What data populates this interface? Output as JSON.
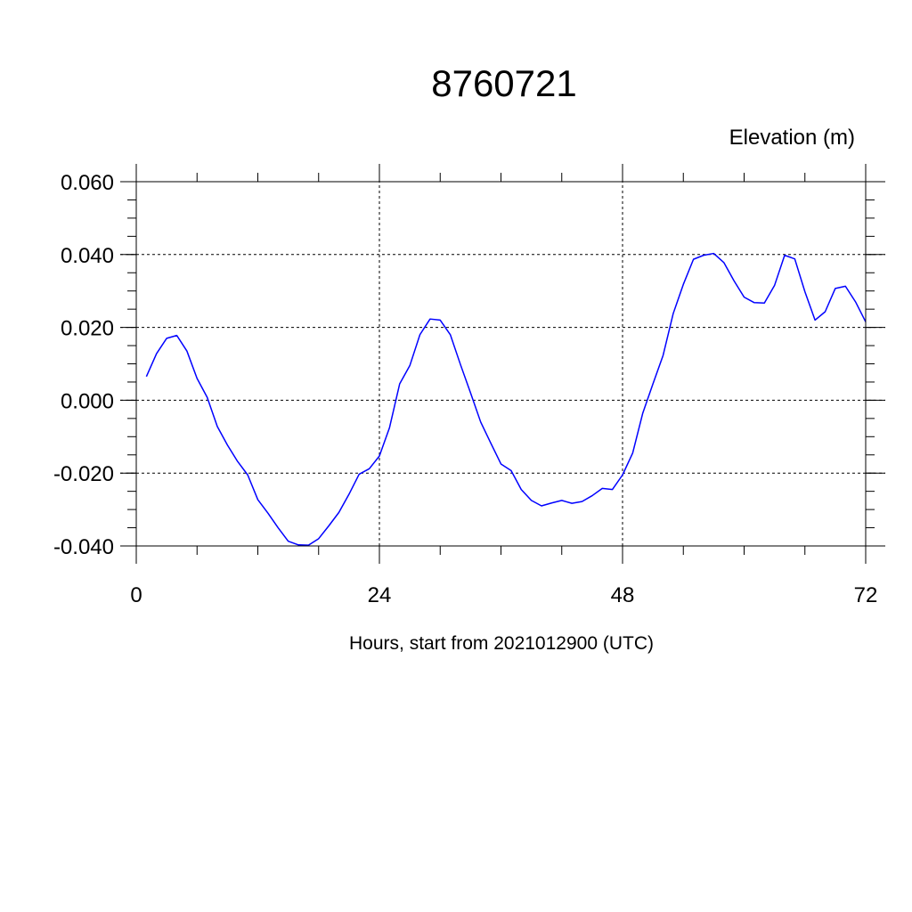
{
  "chart_data": {
    "type": "line",
    "title": "8760721",
    "subtitle": "Elevation (m)",
    "xlabel": "Hours, start from 2021012900 (UTC)",
    "ylabel": "",
    "xlim": [
      0,
      72
    ],
    "ylim": [
      -0.04,
      0.06
    ],
    "xticks": [
      0,
      24,
      48,
      72
    ],
    "xtick_labels": [
      "0",
      "24",
      "48",
      "72"
    ],
    "yticks": [
      -0.04,
      -0.02,
      0.0,
      0.02,
      0.04,
      0.06
    ],
    "ytick_labels": [
      "-0.040",
      "-0.020",
      "0.000",
      "0.020",
      "0.040",
      "0.060"
    ],
    "grid": true,
    "line_color": "#0000ff",
    "series": [
      {
        "x": [
          1,
          2,
          3,
          4,
          5,
          6,
          7,
          8,
          9,
          10,
          11,
          12,
          13,
          14,
          15,
          16,
          17,
          18,
          19,
          20,
          21,
          22,
          23,
          24,
          25,
          26,
          27,
          28,
          29,
          30,
          31,
          32,
          33,
          34,
          35,
          36,
          37,
          38,
          39,
          40,
          41,
          42,
          43,
          44,
          45,
          46,
          47,
          48,
          49,
          50,
          51,
          52,
          53,
          54,
          55,
          56,
          57,
          58,
          59,
          60,
          61,
          62,
          63,
          64,
          65,
          66,
          67,
          68,
          69,
          70,
          71,
          72
        ],
        "y": [
          0.0065,
          0.0128,
          0.017,
          0.0178,
          0.0135,
          0.006,
          0.0008,
          -0.0072,
          -0.0123,
          -0.0168,
          -0.0205,
          -0.0273,
          -0.031,
          -0.035,
          -0.0387,
          -0.0397,
          -0.0398,
          -0.038,
          -0.0345,
          -0.0308,
          -0.0258,
          -0.0203,
          -0.0188,
          -0.0153,
          -0.0075,
          0.0045,
          0.0095,
          0.018,
          0.0223,
          0.022,
          0.018,
          0.0098,
          0.002,
          -0.006,
          -0.0118,
          -0.0175,
          -0.0193,
          -0.0245,
          -0.0275,
          -0.029,
          -0.0282,
          -0.0275,
          -0.0283,
          -0.0278,
          -0.0262,
          -0.0242,
          -0.0245,
          -0.0205,
          -0.0145,
          -0.0035,
          0.0045,
          0.0123,
          0.0238,
          0.0318,
          0.0387,
          0.0398,
          0.0403,
          0.0378,
          0.0328,
          0.0283,
          0.0268,
          0.0267,
          0.0315,
          0.0398,
          0.0388,
          0.0298,
          0.022,
          0.0243,
          0.0307,
          0.0313,
          0.027,
          0.0215
        ]
      }
    ]
  }
}
